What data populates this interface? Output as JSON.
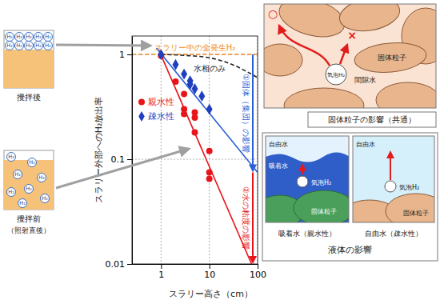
{
  "chart_data": {
    "type": "scatter",
    "xlabel": "スラリー高さ（cm）",
    "ylabel": "スラリー外部へのH₂放出率",
    "log": true,
    "xlim": [
      0.25,
      100
    ],
    "xticks": [
      1,
      10,
      100
    ],
    "ylim": [
      0.01,
      1.5
    ],
    "yticks": [
      0.01,
      0.1,
      1
    ],
    "grid": true,
    "legend": "center left",
    "series": [
      {
        "name": "親水性",
        "color": "#e8141b",
        "marker": "circle",
        "x": [
          1,
          2,
          3,
          3,
          3,
          5,
          5,
          5,
          10,
          10,
          10
        ],
        "values": [
          0.97,
          0.55,
          0.42,
          0.3,
          0.27,
          0.28,
          0.25,
          0.18,
          0.12,
          0.075,
          0.065
        ]
      },
      {
        "name": "疎水性",
        "color": "#1f3fbf",
        "marker": "diamond",
        "x": [
          1,
          2,
          3,
          4,
          4,
          5,
          7,
          10
        ],
        "values": [
          1.0,
          0.8,
          0.65,
          0.56,
          0.52,
          0.47,
          0.4,
          0.3
        ]
      },
      {
        "type": "line",
        "color": "#e8141b",
        "x": [
          0.9,
          75
        ],
        "values": [
          1.1,
          0.01
        ]
      },
      {
        "type": "line",
        "color": "#2a5fd6",
        "x": [
          0.8,
          100
        ],
        "values": [
          1.15,
          0.075
        ]
      },
      {
        "name": "スラリー中の全発生H₂",
        "type": "line",
        "color": "#f08a24",
        "line_style": "dashed",
        "x": [
          0.25,
          100
        ],
        "values": [
          1,
          1
        ]
      },
      {
        "name": "水相のみ",
        "type": "line",
        "color": "#222222",
        "line_style": "dashed",
        "x": [
          1,
          3,
          10,
          30,
          100
        ],
        "values": [
          1,
          0.98,
          0.93,
          0.8,
          0.6
        ]
      }
    ],
    "annotations": [
      {
        "text": "①固体（集団）の影響",
        "x": 100,
        "y_from": 1,
        "y_to": 0.075,
        "color": "#2a5fd6"
      },
      {
        "text": "②水の粘度の影響",
        "x": 100,
        "y_from": 0.075,
        "y_to": 0.01,
        "color": "#e8141b"
      }
    ]
  },
  "left_panel": {
    "after": "攪拌後",
    "before": "攪拌前",
    "before_note": "（照射直後）",
    "bubble": "H₂"
  },
  "solid_panel": {
    "title": "固体粒子の影響（共通）",
    "particle": "固体粒子",
    "pore_water": "間隙水",
    "bubble": "気泡H₂",
    "ok": "○",
    "ng": "×"
  },
  "liquid_panel": {
    "title": "液体の影響",
    "adsorbed": {
      "caption": "吸着水（親水性）",
      "free": "自由水",
      "layer": "吸着水",
      "bubble": "気泡H₂",
      "particle": "固体粒子"
    },
    "free": {
      "caption": "自由水（疎水性）",
      "free": "自由水",
      "bubble": "気泡H₂",
      "particle": "固体粒子"
    }
  }
}
